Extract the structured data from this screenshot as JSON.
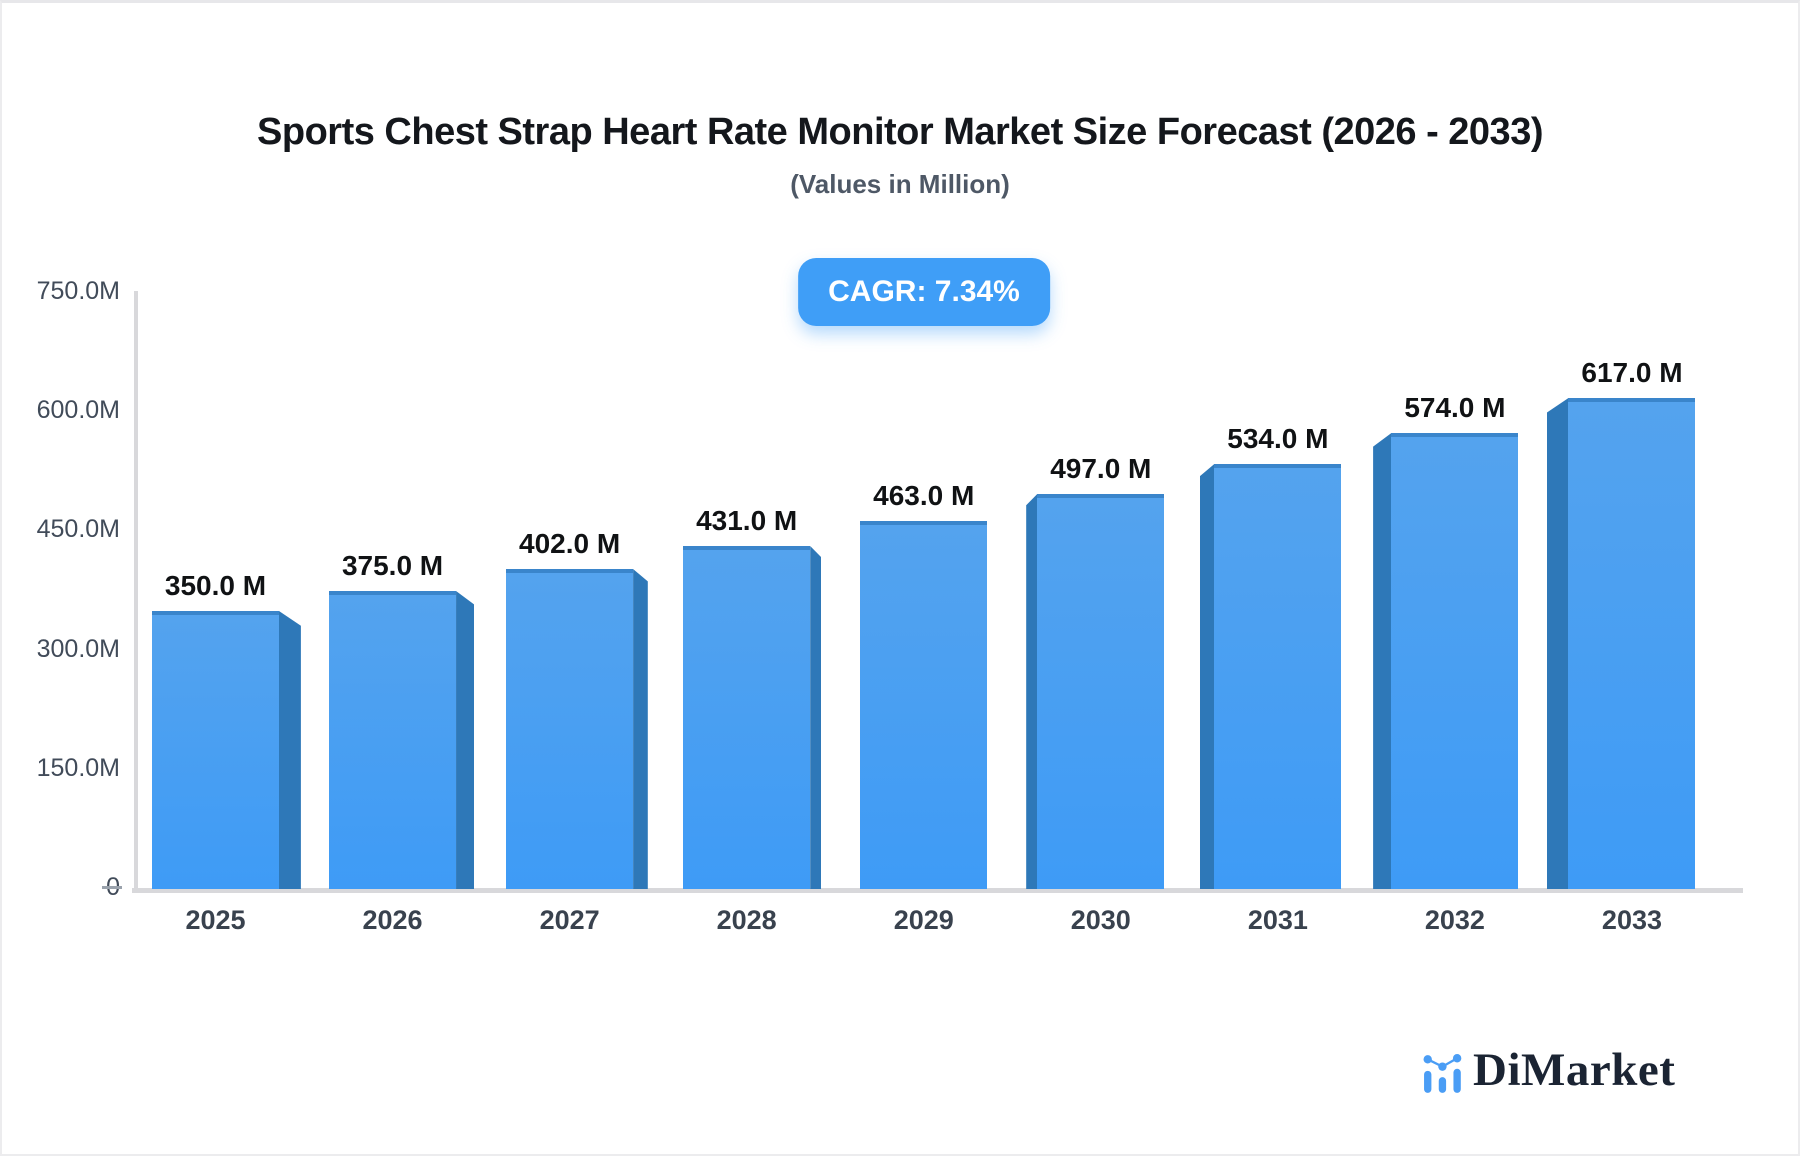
{
  "title": "Sports Chest Strap Heart Rate Monitor Market Size Forecast (2026 - 2033)",
  "subtitle": "(Values in Million)",
  "badge": {
    "label": "CAGR: 7.34%"
  },
  "logo": {
    "name": "DiMarket",
    "icon": "bar-line-chart-icon"
  },
  "chart_data": {
    "type": "bar",
    "title": "Sports Chest Strap Heart Rate Monitor Market Size Forecast (2026 - 2033)",
    "subtitle": "(Values in Million)",
    "cagr_percent": 7.34,
    "categories": [
      "2025",
      "2026",
      "2027",
      "2028",
      "2029",
      "2030",
      "2031",
      "2032",
      "2033"
    ],
    "values": [
      350,
      375,
      402,
      431,
      463,
      497,
      534,
      574,
      617
    ],
    "value_labels": [
      "350.0 M",
      "375.0 M",
      "402.0 M",
      "431.0 M",
      "463.0 M",
      "497.0 M",
      "534.0 M",
      "574.0 M",
      "617.0 M"
    ],
    "unit": "Million",
    "y_ticks": [
      "750.0M",
      "600.0M",
      "450.0M",
      "300.0M",
      "150.0M",
      "0"
    ],
    "y_tick_values": [
      750,
      600,
      450,
      300,
      150,
      0
    ],
    "ylim": [
      0,
      750
    ],
    "grid": "off",
    "legend": "none",
    "bar_style": "3d-perspective-center-vanishing",
    "colors": {
      "bar_top": "#54a3ee",
      "bar_bottom": "#3e9bf6",
      "bar_top_edge": "#3a85cb",
      "bar_side": "#2e78b8",
      "axis_line": "#d8d8db",
      "zero_tick": "#9aa2ac",
      "y_label": "#414b59",
      "x_label": "#39424e",
      "value_label": "#101214",
      "badge_bg": "#3f9ef7",
      "logo_blue": "#4a9df5",
      "logo_navy": "#1b2433"
    }
  }
}
